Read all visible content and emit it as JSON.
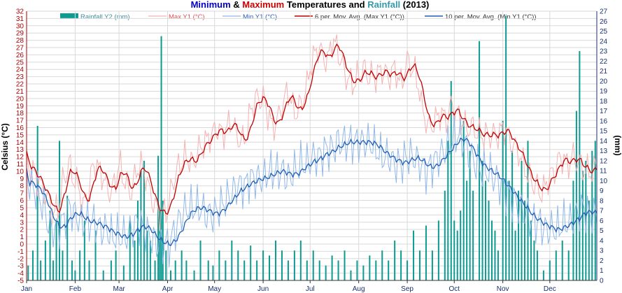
{
  "chart_data": {
    "type": "bar+line",
    "title": {
      "parts": [
        {
          "text": "Minimum",
          "color": "#0000cc"
        },
        {
          "text": " & ",
          "color": "#000000"
        },
        {
          "text": "Maximum",
          "color": "#cc0000"
        },
        {
          "text": " Temperatures and ",
          "color": "#000000"
        },
        {
          "text": "Rainfall",
          "color": "#3399aa"
        },
        {
          "text": " (2013)",
          "color": "#000000"
        }
      ]
    },
    "ylabel_left": "Celsius (°C)",
    "ylabel_right": "(mm)",
    "ylim_left": [
      -5,
      32
    ],
    "ylim_right": [
      0,
      27
    ],
    "x_ticks": [
      "Jan",
      "Feb",
      "Mar",
      "Apr",
      "May",
      "Jun",
      "Jul",
      "Aug",
      "Sep",
      "Oct",
      "Nov",
      "Dec"
    ],
    "x_tick_day": [
      1,
      32,
      60,
      91,
      121,
      152,
      182,
      213,
      244,
      274,
      305,
      335
    ],
    "day_range": [
      1,
      365
    ],
    "legend": [
      {
        "name": "Rainfall Y2 (mm)",
        "kind": "bar",
        "color": "#0e9b92",
        "text_color": "#3a8f9a"
      },
      {
        "name": "Max Y1 (°C)",
        "kind": "line",
        "color": "#f4b2b2",
        "text_color": "#e05050"
      },
      {
        "name": "Min Y1 (°C)",
        "kind": "line",
        "color": "#90b8e8",
        "text_color": "#2a5fb0"
      },
      {
        "name": "6 per. Mov. Avg. (Max Y1 (°C))",
        "kind": "line",
        "color": "#c00000",
        "text_color": "#333333"
      },
      {
        "name": "10 per. Mov. Avg. (Min Y1 (°C))",
        "kind": "line",
        "color": "#1f5fb5",
        "text_color": "#333333"
      }
    ],
    "colors": {
      "left_axis": "#aa0000",
      "right_axis": "#1a2f6e",
      "grid": "#d9d9d9"
    },
    "max_anchors": [
      [
        1,
        11
      ],
      [
        4,
        10
      ],
      [
        8,
        9
      ],
      [
        12,
        7
      ],
      [
        15,
        6
      ],
      [
        18,
        4
      ],
      [
        21,
        5
      ],
      [
        25,
        9
      ],
      [
        28,
        11
      ],
      [
        31,
        9
      ],
      [
        34,
        8
      ],
      [
        37,
        5
      ],
      [
        40,
        7
      ],
      [
        44,
        11
      ],
      [
        48,
        10
      ],
      [
        52,
        8
      ],
      [
        55,
        7
      ],
      [
        58,
        9
      ],
      [
        60,
        11
      ],
      [
        63,
        9
      ],
      [
        67,
        7
      ],
      [
        70,
        9
      ],
      [
        73,
        11
      ],
      [
        76,
        10
      ],
      [
        80,
        7
      ],
      [
        83,
        5
      ],
      [
        87,
        4
      ],
      [
        91,
        5
      ],
      [
        95,
        9
      ],
      [
        99,
        11
      ],
      [
        103,
        12
      ],
      [
        107,
        11
      ],
      [
        111,
        13
      ],
      [
        115,
        14
      ],
      [
        119,
        15
      ],
      [
        123,
        16
      ],
      [
        126,
        15
      ],
      [
        129,
        16
      ],
      [
        132,
        17
      ],
      [
        135,
        15
      ],
      [
        138,
        14
      ],
      [
        141,
        15
      ],
      [
        145,
        19
      ],
      [
        148,
        20
      ],
      [
        152,
        20
      ],
      [
        155,
        18
      ],
      [
        158,
        16
      ],
      [
        161,
        17
      ],
      [
        164,
        19
      ],
      [
        168,
        21
      ],
      [
        172,
        18
      ],
      [
        176,
        19
      ],
      [
        179,
        21
      ],
      [
        183,
        25
      ],
      [
        187,
        27
      ],
      [
        190,
        26
      ],
      [
        193,
        25
      ],
      [
        196,
        28
      ],
      [
        199,
        27
      ],
      [
        202,
        25
      ],
      [
        205,
        23
      ],
      [
        209,
        22
      ],
      [
        213,
        23
      ],
      [
        216,
        24
      ],
      [
        220,
        23
      ],
      [
        224,
        23
      ],
      [
        228,
        24
      ],
      [
        232,
        23
      ],
      [
        236,
        24
      ],
      [
        240,
        22
      ],
      [
        244,
        25
      ],
      [
        248,
        24
      ],
      [
        251,
        22
      ],
      [
        254,
        18
      ],
      [
        258,
        16
      ],
      [
        262,
        17
      ],
      [
        265,
        18
      ],
      [
        269,
        17
      ],
      [
        272,
        19
      ],
      [
        275,
        18
      ],
      [
        278,
        17
      ],
      [
        282,
        16
      ],
      [
        286,
        16
      ],
      [
        290,
        15
      ],
      [
        294,
        15
      ],
      [
        298,
        15
      ],
      [
        302,
        15
      ],
      [
        306,
        16
      ],
      [
        310,
        14
      ],
      [
        314,
        13
      ],
      [
        318,
        11
      ],
      [
        322,
        9
      ],
      [
        326,
        8
      ],
      [
        330,
        7
      ],
      [
        334,
        9
      ],
      [
        338,
        10
      ],
      [
        342,
        12
      ],
      [
        346,
        11
      ],
      [
        350,
        12
      ],
      [
        354,
        11
      ],
      [
        358,
        10
      ],
      [
        362,
        10
      ],
      [
        365,
        11
      ]
    ],
    "min_anchors": [
      [
        1,
        9
      ],
      [
        4,
        8
      ],
      [
        8,
        7
      ],
      [
        12,
        5
      ],
      [
        16,
        2
      ],
      [
        20,
        2
      ],
      [
        24,
        3
      ],
      [
        28,
        5
      ],
      [
        32,
        4
      ],
      [
        36,
        3
      ],
      [
        40,
        3
      ],
      [
        44,
        3
      ],
      [
        48,
        2
      ],
      [
        52,
        2
      ],
      [
        56,
        1
      ],
      [
        60,
        1
      ],
      [
        64,
        1
      ],
      [
        68,
        2
      ],
      [
        72,
        3
      ],
      [
        76,
        2
      ],
      [
        80,
        1
      ],
      [
        84,
        0
      ],
      [
        88,
        0
      ],
      [
        92,
        0
      ],
      [
        96,
        2
      ],
      [
        100,
        4
      ],
      [
        104,
        5
      ],
      [
        108,
        5
      ],
      [
        112,
        5
      ],
      [
        116,
        4
      ],
      [
        120,
        4
      ],
      [
        124,
        5
      ],
      [
        128,
        6
      ],
      [
        132,
        7
      ],
      [
        136,
        8
      ],
      [
        140,
        8
      ],
      [
        144,
        9
      ],
      [
        148,
        9
      ],
      [
        152,
        9
      ],
      [
        156,
        10
      ],
      [
        160,
        10
      ],
      [
        164,
        10
      ],
      [
        168,
        9
      ],
      [
        172,
        10
      ],
      [
        176,
        11
      ],
      [
        180,
        11
      ],
      [
        184,
        12
      ],
      [
        188,
        12
      ],
      [
        192,
        13
      ],
      [
        196,
        13
      ],
      [
        200,
        14
      ],
      [
        204,
        14
      ],
      [
        208,
        14
      ],
      [
        212,
        14
      ],
      [
        216,
        14
      ],
      [
        220,
        14
      ],
      [
        224,
        13
      ],
      [
        228,
        12
      ],
      [
        232,
        12
      ],
      [
        236,
        11
      ],
      [
        240,
        11
      ],
      [
        244,
        12
      ],
      [
        248,
        12
      ],
      [
        252,
        11
      ],
      [
        256,
        10
      ],
      [
        260,
        11
      ],
      [
        264,
        12
      ],
      [
        268,
        13
      ],
      [
        272,
        14
      ],
      [
        276,
        15
      ],
      [
        280,
        14
      ],
      [
        284,
        12
      ],
      [
        288,
        11
      ],
      [
        292,
        10
      ],
      [
        296,
        10
      ],
      [
        300,
        9
      ],
      [
        304,
        8
      ],
      [
        308,
        7
      ],
      [
        312,
        6
      ],
      [
        316,
        5
      ],
      [
        320,
        4
      ],
      [
        324,
        3
      ],
      [
        328,
        3
      ],
      [
        332,
        2
      ],
      [
        336,
        2
      ],
      [
        340,
        2
      ],
      [
        344,
        3
      ],
      [
        348,
        3
      ],
      [
        352,
        4
      ],
      [
        356,
        5
      ],
      [
        360,
        4
      ],
      [
        365,
        4
      ]
    ],
    "rain_anchors": [
      [
        2,
        1.5
      ],
      [
        5,
        3
      ],
      [
        8,
        15.5
      ],
      [
        10,
        2
      ],
      [
        13,
        4
      ],
      [
        16,
        7
      ],
      [
        18,
        2
      ],
      [
        20,
        6
      ],
      [
        22,
        14
      ],
      [
        24,
        3
      ],
      [
        27,
        8.5
      ],
      [
        30,
        2
      ],
      [
        32,
        1
      ],
      [
        35,
        3
      ],
      [
        38,
        6
      ],
      [
        41,
        2
      ],
      [
        45,
        5
      ],
      [
        50,
        1
      ],
      [
        55,
        2
      ],
      [
        58,
        3
      ],
      [
        63,
        1.5
      ],
      [
        67,
        6
      ],
      [
        70,
        4
      ],
      [
        72,
        8
      ],
      [
        74,
        11
      ],
      [
        76,
        12
      ],
      [
        78,
        5
      ],
      [
        80,
        4
      ],
      [
        83,
        2
      ],
      [
        85,
        12.5
      ],
      [
        86,
        7
      ],
      [
        87,
        24.5
      ],
      [
        88,
        8
      ],
      [
        90,
        3
      ],
      [
        93,
        1
      ],
      [
        96,
        2
      ],
      [
        100,
        3
      ],
      [
        103,
        2
      ],
      [
        108,
        1
      ],
      [
        112,
        4
      ],
      [
        117,
        2
      ],
      [
        120,
        1.5
      ],
      [
        124,
        3
      ],
      [
        128,
        2
      ],
      [
        132,
        4
      ],
      [
        136,
        3
      ],
      [
        140,
        2
      ],
      [
        144,
        3.5
      ],
      [
        148,
        2
      ],
      [
        152,
        3
      ],
      [
        156,
        2.5
      ],
      [
        160,
        4
      ],
      [
        164,
        3
      ],
      [
        168,
        2
      ],
      [
        172,
        3
      ],
      [
        176,
        4
      ],
      [
        180,
        2
      ],
      [
        184,
        3
      ],
      [
        188,
        2
      ],
      [
        192,
        1.5
      ],
      [
        196,
        2.5
      ],
      [
        200,
        2
      ],
      [
        204,
        3
      ],
      [
        208,
        1
      ],
      [
        212,
        2
      ],
      [
        216,
        1.5
      ],
      [
        220,
        2.5
      ],
      [
        224,
        2
      ],
      [
        228,
        3
      ],
      [
        232,
        2
      ],
      [
        236,
        4
      ],
      [
        240,
        3
      ],
      [
        244,
        2
      ],
      [
        248,
        5
      ],
      [
        252,
        3
      ],
      [
        256,
        5.5
      ],
      [
        260,
        3
      ],
      [
        264,
        6
      ],
      [
        268,
        9
      ],
      [
        270,
        14
      ],
      [
        272,
        20
      ],
      [
        274,
        6
      ],
      [
        276,
        5
      ],
      [
        278,
        7
      ],
      [
        280,
        16
      ],
      [
        282,
        10
      ],
      [
        284,
        13
      ],
      [
        286,
        9
      ],
      [
        290,
        24
      ],
      [
        292,
        12
      ],
      [
        294,
        10
      ],
      [
        296,
        8
      ],
      [
        298,
        6
      ],
      [
        300,
        5
      ],
      [
        302,
        3
      ],
      [
        305,
        16
      ],
      [
        307,
        26.5
      ],
      [
        309,
        10
      ],
      [
        311,
        13
      ],
      [
        313,
        5
      ],
      [
        315,
        9
      ],
      [
        317,
        12
      ],
      [
        319,
        8
      ],
      [
        321,
        14
      ],
      [
        323,
        6
      ],
      [
        325,
        4
      ],
      [
        327,
        3
      ],
      [
        331,
        1
      ],
      [
        335,
        2
      ],
      [
        339,
        3
      ],
      [
        343,
        4
      ],
      [
        347,
        3
      ],
      [
        350,
        10
      ],
      [
        352,
        17
      ],
      [
        354,
        23
      ],
      [
        356,
        11
      ],
      [
        358,
        12
      ],
      [
        360,
        8
      ],
      [
        362,
        13
      ],
      [
        364,
        14
      ]
    ]
  }
}
